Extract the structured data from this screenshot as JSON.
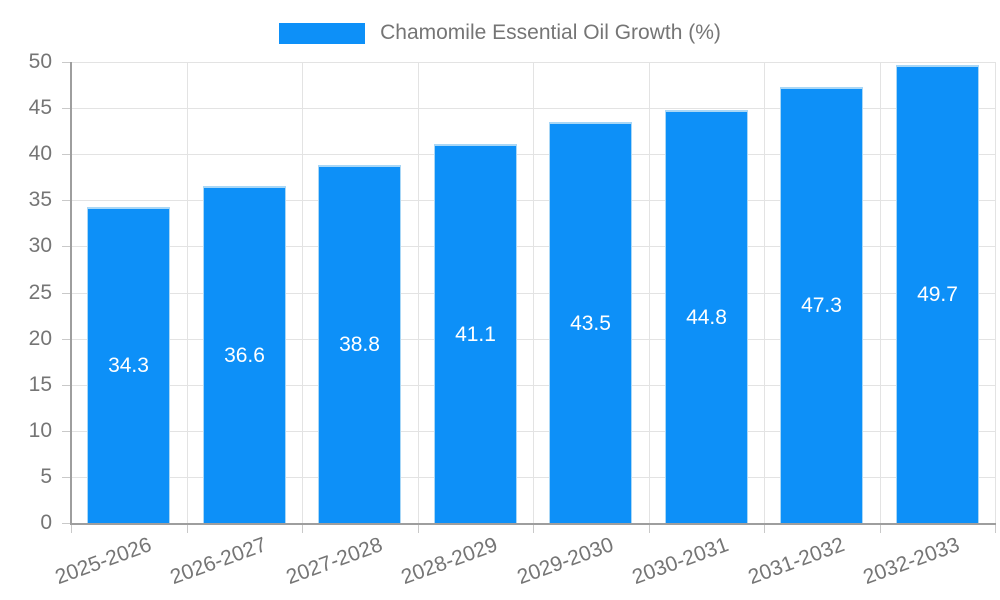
{
  "chart_data": {
    "type": "bar",
    "title": "",
    "legend": "Chamomile Essential Oil Growth (%)",
    "categories": [
      "2025-2026",
      "2026-2027",
      "2027-2028",
      "2028-2029",
      "2029-2030",
      "2030-2031",
      "2031-2032",
      "2032-2033"
    ],
    "values": [
      34.3,
      36.6,
      38.8,
      41.1,
      43.5,
      44.8,
      47.3,
      49.7
    ],
    "value_labels": [
      "34.3",
      "36.6",
      "38.8",
      "41.1",
      "43.5",
      "44.8",
      "47.3",
      "49.7"
    ],
    "y_ticks": [
      0,
      5,
      10,
      15,
      20,
      25,
      30,
      35,
      40,
      45,
      50
    ],
    "ylim": [
      0,
      50
    ],
    "xlabel": "",
    "ylabel": "",
    "grid": true,
    "legend_position": "top-center",
    "x_label_rotation_deg": -20,
    "colors": {
      "bar_fill": "#0D90F8",
      "bar_border": "#A9D7F6",
      "grid_line": "#E3E3E3",
      "tick_line": "#C9C9C9",
      "axis_line": "#9E9E9E",
      "tick_text": "#757575",
      "legend_text": "#757575",
      "data_label_text": "#FFFFFF",
      "background": "#FFFFFF"
    }
  }
}
